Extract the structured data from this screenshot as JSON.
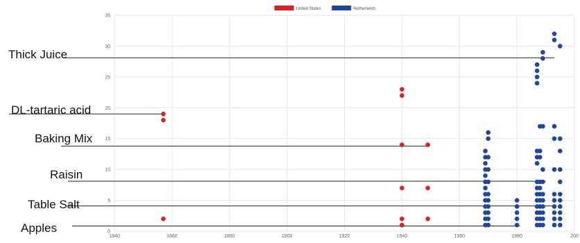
{
  "chart_data": {
    "type": "scatter",
    "title": "",
    "xlabel": "",
    "ylabel": "",
    "xlim": [
      1840,
      2000
    ],
    "ylim": [
      0,
      35
    ],
    "x_ticks": [
      "1840",
      "1860",
      "1880",
      "1900",
      "1920",
      "1940",
      "1960",
      "1980",
      "200"
    ],
    "y_ticks": [
      "0",
      "5",
      "10",
      "15",
      "20",
      "25",
      "30",
      "35"
    ],
    "grid": true,
    "legend_position": "top-center",
    "series": [
      {
        "name": "United States",
        "color": "#e02020",
        "points": [
          [
            1857,
            2
          ],
          [
            1857,
            18
          ],
          [
            1857,
            19
          ],
          [
            1940,
            1
          ],
          [
            1940,
            2
          ],
          [
            1940,
            7
          ],
          [
            1940,
            14
          ],
          [
            1940,
            22
          ],
          [
            1940,
            23
          ],
          [
            1949,
            2
          ],
          [
            1949,
            7
          ],
          [
            1949,
            14
          ]
        ]
      },
      {
        "name": "Netherlands",
        "color": "#1f47a0",
        "points": [
          [
            1969,
            1
          ],
          [
            1969,
            2
          ],
          [
            1969,
            3
          ],
          [
            1969,
            4
          ],
          [
            1969,
            5
          ],
          [
            1969,
            6
          ],
          [
            1969,
            7
          ],
          [
            1969,
            8
          ],
          [
            1969,
            9
          ],
          [
            1969,
            10
          ],
          [
            1969,
            11
          ],
          [
            1969,
            12
          ],
          [
            1969,
            13
          ],
          [
            1970,
            1
          ],
          [
            1970,
            2
          ],
          [
            1970,
            3
          ],
          [
            1970,
            4
          ],
          [
            1970,
            5
          ],
          [
            1970,
            6
          ],
          [
            1970,
            8
          ],
          [
            1970,
            10
          ],
          [
            1970,
            12
          ],
          [
            1970,
            15
          ],
          [
            1970,
            16
          ],
          [
            1980,
            1
          ],
          [
            1980,
            2
          ],
          [
            1980,
            3
          ],
          [
            1980,
            4
          ],
          [
            1980,
            5
          ],
          [
            1987,
            1
          ],
          [
            1987,
            2
          ],
          [
            1987,
            3
          ],
          [
            1987,
            4
          ],
          [
            1987,
            5
          ],
          [
            1987,
            6
          ],
          [
            1987,
            7
          ],
          [
            1987,
            8
          ],
          [
            1987,
            11
          ],
          [
            1987,
            12
          ],
          [
            1987,
            13
          ],
          [
            1987,
            24
          ],
          [
            1987,
            25
          ],
          [
            1987,
            26
          ],
          [
            1987,
            27
          ],
          [
            1988,
            1
          ],
          [
            1988,
            2
          ],
          [
            1988,
            3
          ],
          [
            1988,
            4
          ],
          [
            1988,
            5
          ],
          [
            1988,
            6
          ],
          [
            1988,
            7
          ],
          [
            1988,
            8
          ],
          [
            1988,
            12
          ],
          [
            1988,
            13
          ],
          [
            1988,
            17
          ],
          [
            1989,
            1
          ],
          [
            1989,
            2
          ],
          [
            1989,
            3
          ],
          [
            1989,
            4
          ],
          [
            1989,
            5
          ],
          [
            1989,
            6
          ],
          [
            1989,
            8
          ],
          [
            1989,
            10
          ],
          [
            1989,
            17
          ],
          [
            1989,
            28
          ],
          [
            1989,
            29
          ],
          [
            1993,
            1
          ],
          [
            1993,
            2
          ],
          [
            1993,
            3
          ],
          [
            1993,
            4
          ],
          [
            1993,
            5
          ],
          [
            1993,
            6
          ],
          [
            1993,
            10
          ],
          [
            1993,
            15
          ],
          [
            1993,
            17
          ],
          [
            1993,
            31
          ],
          [
            1993,
            32
          ],
          [
            1995,
            1
          ],
          [
            1995,
            2
          ],
          [
            1995,
            3
          ],
          [
            1995,
            4
          ],
          [
            1995,
            5
          ],
          [
            1995,
            6
          ],
          [
            1995,
            8
          ],
          [
            1995,
            10
          ],
          [
            1995,
            13
          ],
          [
            1995,
            15
          ],
          [
            1995,
            30
          ]
        ]
      }
    ],
    "annotations": [
      {
        "label": "Thick Juice",
        "y": 28.1,
        "x_end": 1993
      },
      {
        "label": "DL-tartaric acid",
        "y": 19.0,
        "x_end": 1857
      },
      {
        "label": "Baking Mix",
        "y": 13.8,
        "x_end": 1949
      },
      {
        "label": "Raisin",
        "y": 8.1,
        "x_end": 1990
      },
      {
        "label": "Table Salt",
        "y": 4.1,
        "x_end": 1993
      },
      {
        "label": "Apples",
        "y": 0.85,
        "x_end": 1981
      }
    ]
  }
}
